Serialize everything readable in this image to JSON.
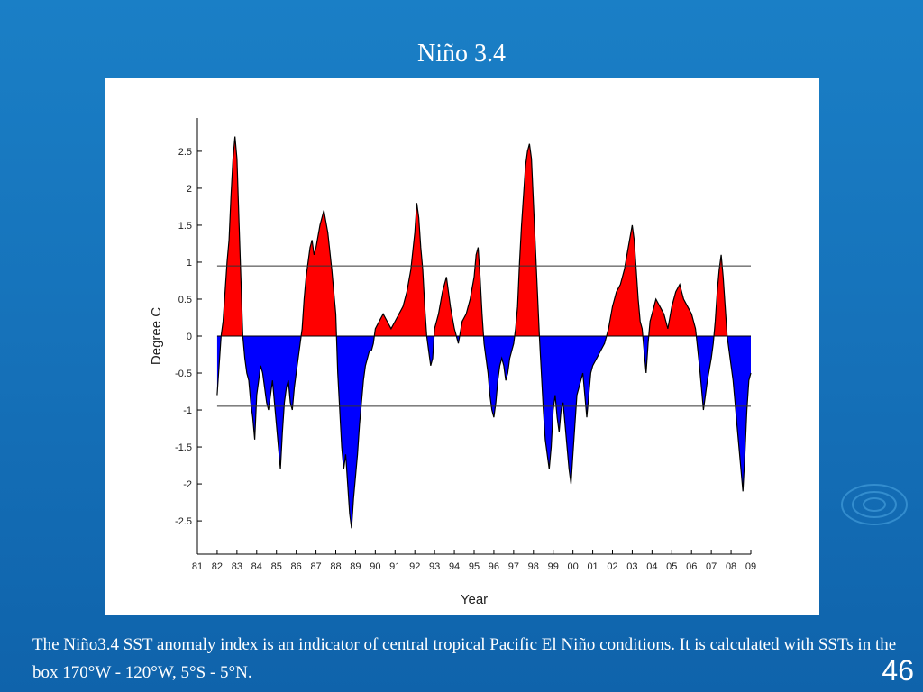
{
  "slide": {
    "title": "Niño 3.4",
    "caption": "The Niño3.4 SST anomaly index is an indicator of central tropical Pacific El Niño conditions. It is calculated with SSTs in the box 170°W - 120°W, 5°S - 5°N.",
    "page_number": "46"
  },
  "colors": {
    "positive_fill": "#ff0000",
    "negative_fill": "#0000ff",
    "line": "#000000",
    "background": "#1570b8"
  },
  "chart_data": {
    "type": "area",
    "title": "",
    "xlabel": "Year",
    "ylabel": "Degree C",
    "xlim": [
      1981,
      2009
    ],
    "ylim": [
      -2.95,
      2.95
    ],
    "x_tick_labels": [
      "81",
      "82",
      "83",
      "84",
      "85",
      "86",
      "87",
      "88",
      "89",
      "90",
      "91",
      "92",
      "93",
      "94",
      "95",
      "96",
      "97",
      "98",
      "99",
      "00",
      "01",
      "02",
      "03",
      "04",
      "05",
      "06",
      "07",
      "08",
      "09"
    ],
    "y_tick_values": [
      2.5,
      2,
      1.5,
      1,
      0.5,
      0,
      -0.5,
      -1,
      -1.5,
      -2,
      -2.5
    ],
    "y_tick_labels": [
      "2.5",
      "2",
      "1.5",
      "1",
      "0.5",
      "0",
      "-0.5",
      "-1",
      "-1.5",
      "-2",
      "-2.5"
    ],
    "reference_lines": [
      0.95,
      -0.95
    ],
    "grid": false,
    "series": [
      {
        "x": [
          1982.0,
          1982.1,
          1982.2,
          1982.3,
          1982.4,
          1982.5,
          1982.6,
          1982.7,
          1982.8,
          1982.9,
          1983.0,
          1983.1,
          1983.2,
          1983.3,
          1983.4,
          1983.5,
          1983.6,
          1983.7,
          1983.8,
          1983.9,
          1984.0,
          1984.1,
          1984.2,
          1984.3,
          1984.4,
          1984.5,
          1984.6,
          1984.7,
          1984.8,
          1984.9,
          1985.0,
          1985.1,
          1985.2,
          1985.3,
          1985.4,
          1985.5,
          1985.6,
          1985.7,
          1985.8,
          1985.9,
          1986.0,
          1986.1,
          1986.2,
          1986.3,
          1986.4,
          1986.5,
          1986.6,
          1986.7,
          1986.8,
          1986.9,
          1987.0,
          1987.2,
          1987.4,
          1987.6,
          1987.8,
          1988.0,
          1988.1,
          1988.2,
          1988.3,
          1988.4,
          1988.5,
          1988.6,
          1988.7,
          1988.8,
          1988.9,
          1989.0,
          1989.1,
          1989.2,
          1989.3,
          1989.4,
          1989.5,
          1989.6,
          1989.7,
          1989.8,
          1989.9,
          1990.0,
          1990.2,
          1990.4,
          1990.6,
          1990.8,
          1991.0,
          1991.2,
          1991.4,
          1991.6,
          1991.8,
          1992.0,
          1992.1,
          1992.2,
          1992.3,
          1992.4,
          1992.5,
          1992.6,
          1992.7,
          1992.8,
          1992.9,
          1993.0,
          1993.2,
          1993.4,
          1993.6,
          1993.8,
          1994.0,
          1994.2,
          1994.4,
          1994.6,
          1994.8,
          1995.0,
          1995.1,
          1995.2,
          1995.3,
          1995.4,
          1995.5,
          1995.6,
          1995.7,
          1995.8,
          1995.9,
          1996.0,
          1996.1,
          1996.2,
          1996.3,
          1996.4,
          1996.5,
          1996.6,
          1996.7,
          1996.8,
          1996.9,
          1997.0,
          1997.1,
          1997.2,
          1997.3,
          1997.4,
          1997.5,
          1997.6,
          1997.7,
          1997.8,
          1997.9,
          1998.0,
          1998.1,
          1998.2,
          1998.3,
          1998.4,
          1998.5,
          1998.6,
          1998.7,
          1998.8,
          1998.9,
          1999.0,
          1999.1,
          1999.2,
          1999.3,
          1999.4,
          1999.5,
          1999.6,
          1999.7,
          1999.8,
          1999.9,
          2000.0,
          2000.1,
          2000.2,
          2000.3,
          2000.4,
          2000.5,
          2000.6,
          2000.7,
          2000.8,
          2000.9,
          2001.0,
          2001.2,
          2001.4,
          2001.6,
          2001.8,
          2002.0,
          2002.2,
          2002.4,
          2002.6,
          2002.8,
          2003.0,
          2003.1,
          2003.2,
          2003.3,
          2003.4,
          2003.5,
          2003.6,
          2003.7,
          2003.8,
          2003.9,
          2004.0,
          2004.2,
          2004.4,
          2004.6,
          2004.8,
          2005.0,
          2005.2,
          2005.4,
          2005.6,
          2005.8,
          2006.0,
          2006.2,
          2006.4,
          2006.6,
          2006.8,
          2007.0,
          2007.1,
          2007.2,
          2007.3,
          2007.4,
          2007.5,
          2007.6,
          2007.7,
          2007.8,
          2007.9,
          2008.0,
          2008.1,
          2008.2,
          2008.3,
          2008.4,
          2008.5,
          2008.6,
          2008.7,
          2008.8,
          2008.9,
          2009.0
        ],
        "y": [
          -0.8,
          -0.4,
          0.0,
          0.2,
          0.6,
          1.0,
          1.3,
          1.9,
          2.4,
          2.7,
          2.4,
          1.6,
          0.8,
          0.0,
          -0.3,
          -0.5,
          -0.6,
          -0.9,
          -1.1,
          -1.4,
          -0.8,
          -0.6,
          -0.4,
          -0.5,
          -0.7,
          -0.9,
          -1.0,
          -0.8,
          -0.6,
          -0.9,
          -1.2,
          -1.5,
          -1.8,
          -1.3,
          -0.9,
          -0.7,
          -0.6,
          -0.9,
          -1.0,
          -0.7,
          -0.5,
          -0.3,
          -0.1,
          0.1,
          0.5,
          0.8,
          1.0,
          1.2,
          1.3,
          1.1,
          1.2,
          1.5,
          1.7,
          1.4,
          0.9,
          0.3,
          -0.5,
          -1.0,
          -1.5,
          -1.8,
          -1.6,
          -2.0,
          -2.4,
          -2.6,
          -2.2,
          -1.9,
          -1.6,
          -1.2,
          -0.9,
          -0.6,
          -0.4,
          -0.3,
          -0.2,
          -0.2,
          -0.1,
          0.1,
          0.2,
          0.3,
          0.2,
          0.1,
          0.2,
          0.3,
          0.4,
          0.6,
          0.9,
          1.4,
          1.8,
          1.6,
          1.2,
          0.9,
          0.4,
          0.0,
          -0.2,
          -0.4,
          -0.3,
          0.1,
          0.3,
          0.6,
          0.8,
          0.4,
          0.1,
          -0.1,
          0.2,
          0.3,
          0.5,
          0.8,
          1.1,
          1.2,
          0.8,
          0.3,
          -0.1,
          -0.3,
          -0.5,
          -0.8,
          -1.0,
          -1.1,
          -0.9,
          -0.6,
          -0.4,
          -0.3,
          -0.4,
          -0.6,
          -0.5,
          -0.3,
          -0.2,
          -0.1,
          0.1,
          0.4,
          1.0,
          1.5,
          1.9,
          2.3,
          2.5,
          2.6,
          2.4,
          1.8,
          1.2,
          0.6,
          0.0,
          -0.5,
          -1.0,
          -1.4,
          -1.6,
          -1.8,
          -1.5,
          -1.0,
          -0.8,
          -1.1,
          -1.3,
          -1.0,
          -0.9,
          -1.2,
          -1.5,
          -1.8,
          -2.0,
          -1.6,
          -1.2,
          -0.8,
          -0.7,
          -0.6,
          -0.5,
          -0.8,
          -1.1,
          -0.8,
          -0.5,
          -0.4,
          -0.3,
          -0.2,
          -0.1,
          0.1,
          0.4,
          0.6,
          0.7,
          0.9,
          1.2,
          1.5,
          1.3,
          0.9,
          0.5,
          0.2,
          0.1,
          -0.2,
          -0.5,
          -0.1,
          0.2,
          0.3,
          0.5,
          0.4,
          0.3,
          0.1,
          0.4,
          0.6,
          0.7,
          0.5,
          0.4,
          0.3,
          0.1,
          -0.4,
          -1.0,
          -0.6,
          -0.3,
          -0.1,
          0.2,
          0.6,
          0.9,
          1.1,
          0.8,
          0.4,
          0.0,
          -0.2,
          -0.4,
          -0.6,
          -0.9,
          -1.2,
          -1.5,
          -1.8,
          -2.1,
          -1.6,
          -1.0,
          -0.6,
          -0.5
        ]
      }
    ]
  }
}
